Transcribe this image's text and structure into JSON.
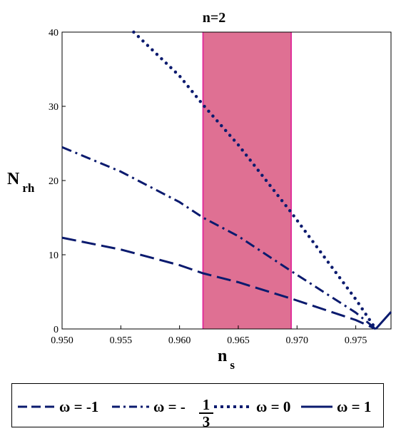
{
  "chart_data": {
    "type": "line",
    "title": "n=2",
    "xlabel_main": "n",
    "xlabel_sub": "s",
    "ylabel_main": "N",
    "ylabel_sub": "rh",
    "xlim": [
      0.95,
      0.978
    ],
    "ylim": [
      0,
      40
    ],
    "xticks": [
      "0.950",
      "0.955",
      "0.960",
      "0.965",
      "0.970",
      "0.975"
    ],
    "xtick_values": [
      0.95,
      0.955,
      0.96,
      0.965,
      0.97,
      0.975
    ],
    "yticks": [
      "0",
      "10",
      "20",
      "30",
      "40"
    ],
    "ytick_values": [
      0,
      10,
      20,
      30,
      40
    ],
    "grid": false,
    "band": {
      "x_from": 0.962,
      "x_to": 0.9695,
      "color": "#df7093",
      "edge_color": "#e0309a"
    },
    "line_color": "#0a1a6e",
    "series": [
      {
        "style": "dashed",
        "x": [
          0.95,
          0.955,
          0.96,
          0.962,
          0.965,
          0.9695,
          0.975,
          0.9767
        ],
        "y": [
          12.3,
          10.7,
          8.6,
          7.5,
          6.3,
          4.1,
          1.2,
          0
        ]
      },
      {
        "style": "dashdot",
        "x": [
          0.95,
          0.955,
          0.96,
          0.962,
          0.965,
          0.9695,
          0.975,
          0.9767
        ],
        "y": [
          24.5,
          21.2,
          17.1,
          15.0,
          12.5,
          7.8,
          2.2,
          0
        ]
      },
      {
        "style": "dotted",
        "x": [
          0.9561,
          0.96,
          0.962,
          0.965,
          0.9695,
          0.975,
          0.9767
        ],
        "y": [
          40,
          34.1,
          30.2,
          24.8,
          15.7,
          4.0,
          0
        ]
      },
      {
        "style": "solid",
        "x": [
          0.9767,
          0.978
        ],
        "y": [
          0,
          2.3
        ]
      }
    ]
  },
  "legend": {
    "items": [
      {
        "label_prefix": "ω = -1",
        "style": "dashed"
      },
      {
        "label_prefix": "ω = -",
        "numerator": "1",
        "denominator": "3",
        "style": "dashdot"
      },
      {
        "label_prefix": "ω = 0",
        "style": "dotted"
      },
      {
        "label_prefix": "ω = 1",
        "style": "solid"
      }
    ]
  }
}
